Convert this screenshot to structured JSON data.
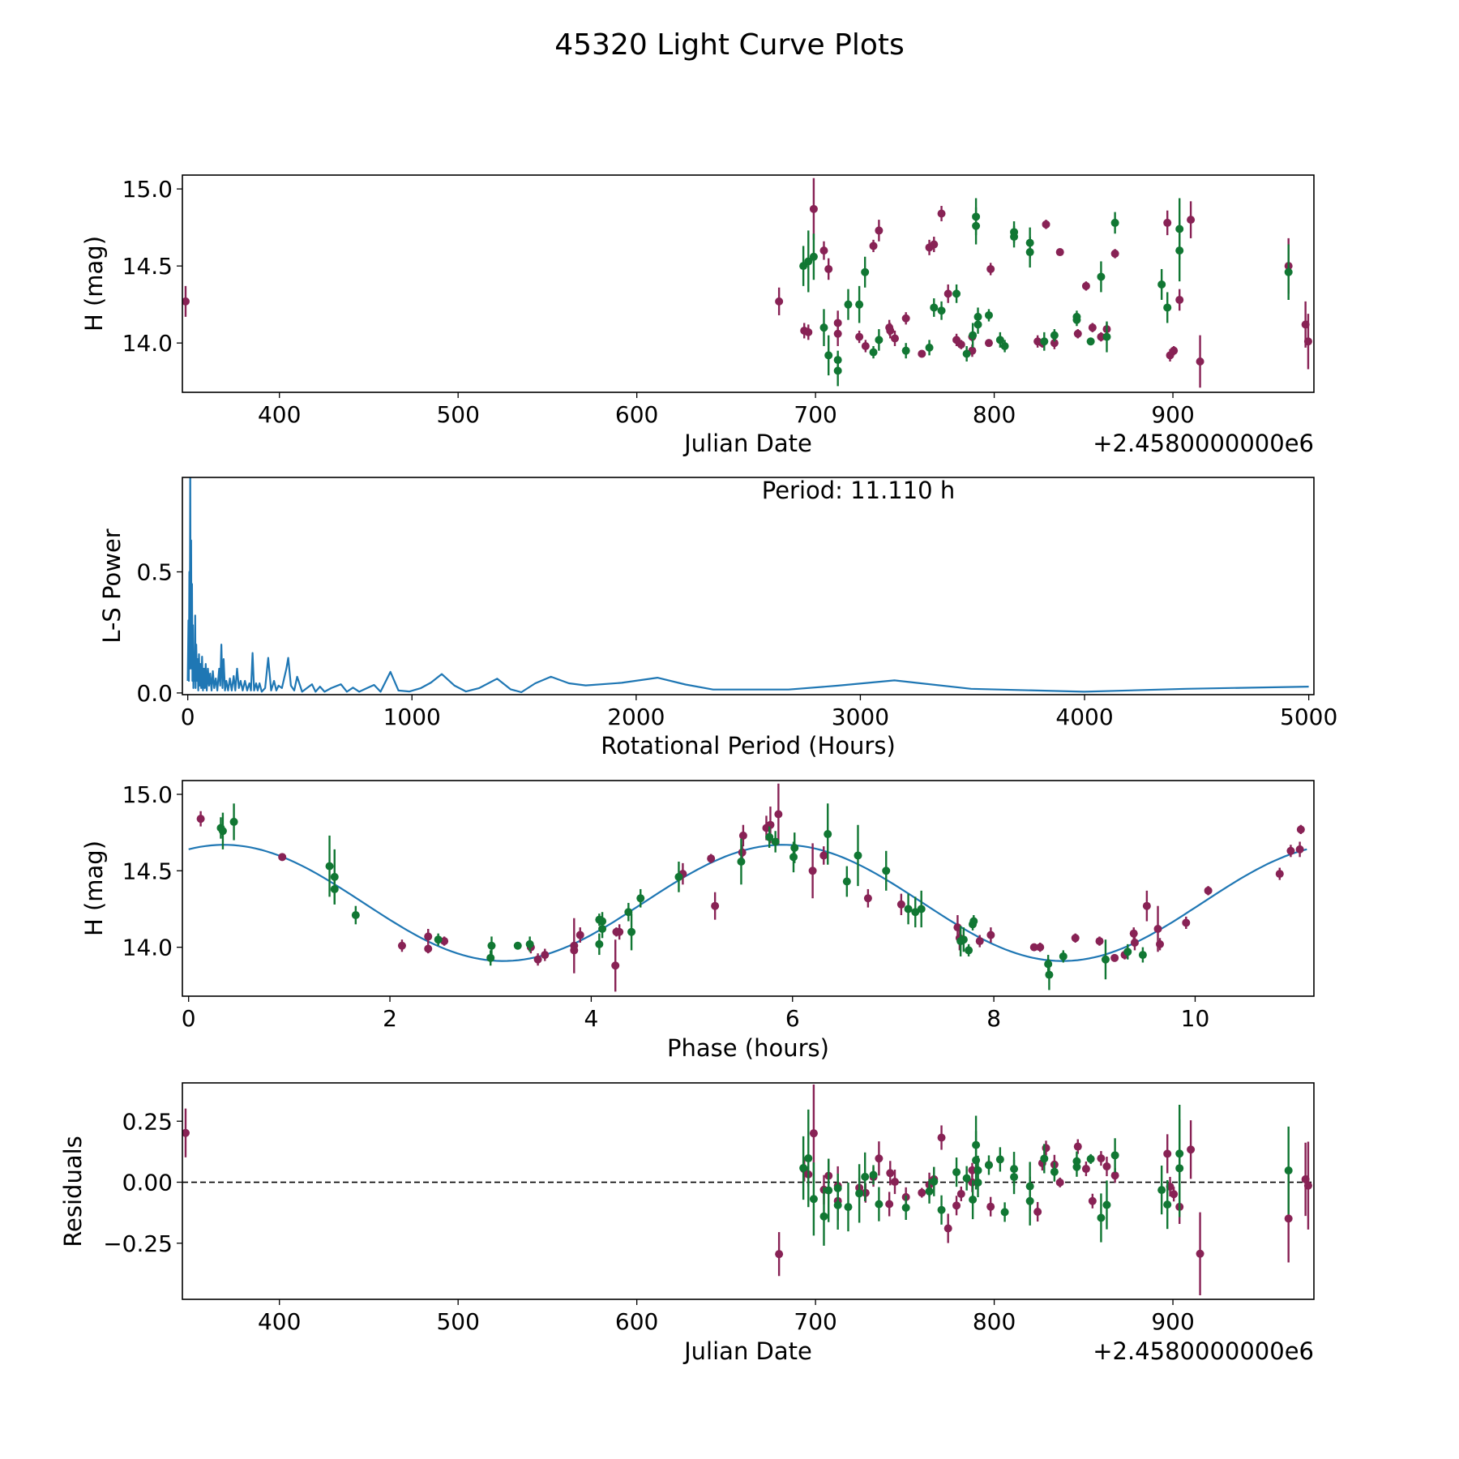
{
  "title": "45320 Light Curve Plots",
  "colors": {
    "m": "#882255",
    "g": "#117733",
    "line": "#1f77b4",
    "axis": "#000000"
  },
  "chart_data": {
    "type": "multi-panel",
    "observations_columns": [
      "julian_date_offset",
      "H_mag",
      "error",
      "series",
      "phase_hours"
    ],
    "observations": [
      [
        347.5,
        14.27,
        0.1,
        "m",
        9.52
      ],
      [
        679.6,
        14.27,
        0.09,
        "m",
        5.23
      ],
      [
        693.7,
        14.08,
        0.05,
        "m",
        7.97
      ],
      [
        696.0,
        14.07,
        0.05,
        "m",
        2.38
      ],
      [
        699.0,
        14.87,
        0.2,
        "m",
        5.86
      ],
      [
        704.7,
        14.6,
        0.06,
        "m",
        6.31
      ],
      [
        707.3,
        14.48,
        0.07,
        "m",
        4.91
      ],
      [
        712.5,
        14.13,
        0.08,
        "m",
        7.64
      ],
      [
        712.5,
        14.06,
        0.08,
        "m",
        7.66
      ],
      [
        724.5,
        14.04,
        0.04,
        "m",
        7.86
      ],
      [
        728.0,
        13.98,
        0.04,
        "m",
        3.83
      ],
      [
        732.4,
        14.63,
        0.04,
        "m",
        10.95
      ],
      [
        735.5,
        14.73,
        0.07,
        "m",
        5.51
      ],
      [
        741.3,
        14.1,
        0.05,
        "m",
        4.28
      ],
      [
        741.8,
        14.08,
        0.05,
        "m",
        3.89
      ],
      [
        744.4,
        14.03,
        0.05,
        "m",
        9.4
      ],
      [
        750.6,
        14.16,
        0.04,
        "m",
        9.91
      ],
      [
        759.5,
        13.93,
        0.02,
        "m",
        9.2
      ],
      [
        763.7,
        14.62,
        0.05,
        "m",
        5.5
      ],
      [
        766.3,
        14.64,
        0.05,
        "m",
        11.04
      ],
      [
        770.5,
        14.84,
        0.05,
        "m",
        0.12
      ],
      [
        774.2,
        14.32,
        0.06,
        "m",
        6.75
      ],
      [
        778.9,
        14.02,
        0.04,
        "m",
        9.65
      ],
      [
        781.5,
        13.99,
        0.03,
        "m",
        2.38
      ],
      [
        787.7,
        14.04,
        0.03,
        "m",
        2.54
      ],
      [
        787.7,
        13.95,
        0.04,
        "m",
        3.54
      ],
      [
        797.0,
        14.0,
        0.02,
        "m",
        8.4
      ],
      [
        798.0,
        14.48,
        0.04,
        "m",
        10.84
      ],
      [
        824.3,
        14.01,
        0.04,
        "m",
        2.12
      ],
      [
        826.9,
        14.0,
        0.03,
        "m",
        8.46
      ],
      [
        829.0,
        14.77,
        0.03,
        "m",
        11.05
      ],
      [
        833.7,
        14.0,
        0.04,
        "m",
        3.4
      ],
      [
        836.8,
        14.59,
        0.02,
        "m",
        0.93
      ],
      [
        846.8,
        14.06,
        0.03,
        "m",
        8.81
      ],
      [
        851.4,
        14.37,
        0.03,
        "m",
        10.13
      ],
      [
        855.0,
        14.1,
        0.03,
        "m",
        4.25
      ],
      [
        859.8,
        14.04,
        0.03,
        "m",
        9.05
      ],
      [
        863.0,
        14.09,
        0.04,
        "m",
        9.39
      ],
      [
        867.6,
        14.58,
        0.03,
        "m",
        5.19
      ],
      [
        896.9,
        14.78,
        0.08,
        "m",
        5.74
      ],
      [
        898.4,
        13.92,
        0.04,
        "m",
        3.47
      ],
      [
        900.5,
        13.95,
        0.03,
        "m",
        9.3
      ],
      [
        903.7,
        14.28,
        0.07,
        "m",
        7.08
      ],
      [
        910.0,
        14.8,
        0.12,
        "m",
        5.78
      ],
      [
        915.2,
        13.88,
        0.17,
        "m",
        4.24
      ],
      [
        964.7,
        14.5,
        0.18,
        "m",
        6.2
      ],
      [
        974.2,
        14.12,
        0.15,
        "m",
        9.63
      ],
      [
        975.7,
        14.01,
        0.18,
        "m",
        3.83
      ],
      [
        693.2,
        14.5,
        0.13,
        "g",
        6.93
      ],
      [
        696.0,
        14.53,
        0.2,
        "g",
        1.4
      ],
      [
        699.0,
        14.56,
        0.15,
        "g",
        5.49
      ],
      [
        704.7,
        14.1,
        0.12,
        "g",
        4.4
      ],
      [
        707.3,
        13.92,
        0.13,
        "g",
        9.11
      ],
      [
        712.5,
        13.89,
        0.06,
        "g",
        8.54
      ],
      [
        712.5,
        13.82,
        0.1,
        "g",
        8.55
      ],
      [
        718.3,
        14.25,
        0.1,
        "g",
        7.15
      ],
      [
        724.5,
        14.25,
        0.12,
        "g",
        7.28
      ],
      [
        727.7,
        14.46,
        0.1,
        "g",
        4.87
      ],
      [
        732.4,
        13.94,
        0.04,
        "g",
        8.69
      ],
      [
        735.5,
        14.02,
        0.07,
        "g",
        4.08
      ],
      [
        750.6,
        13.95,
        0.05,
        "g",
        9.48
      ],
      [
        763.7,
        13.97,
        0.05,
        "g",
        9.33
      ],
      [
        766.3,
        14.23,
        0.06,
        "g",
        4.37
      ],
      [
        770.5,
        14.21,
        0.06,
        "g",
        1.66
      ],
      [
        778.9,
        14.32,
        0.06,
        "g",
        4.49
      ],
      [
        784.6,
        13.93,
        0.05,
        "g",
        3.0
      ],
      [
        788.0,
        14.05,
        0.08,
        "g",
        7.7
      ],
      [
        789.8,
        14.76,
        0.12,
        "g",
        0.34
      ],
      [
        789.8,
        14.82,
        0.12,
        "g",
        0.45
      ],
      [
        790.9,
        14.17,
        0.06,
        "g",
        4.11
      ],
      [
        790.9,
        14.12,
        0.06,
        "g",
        4.11
      ],
      [
        797.0,
        14.18,
        0.04,
        "g",
        4.08
      ],
      [
        803.3,
        14.02,
        0.05,
        "g",
        3.39
      ],
      [
        805.9,
        13.98,
        0.04,
        "g",
        7.75
      ],
      [
        811.1,
        14.72,
        0.07,
        "g",
        5.77
      ],
      [
        811.1,
        14.69,
        0.07,
        "g",
        5.83
      ],
      [
        820.0,
        14.65,
        0.1,
        "g",
        6.02
      ],
      [
        820.0,
        14.59,
        0.1,
        "g",
        6.01
      ],
      [
        828.0,
        14.01,
        0.06,
        "g",
        3.01
      ],
      [
        833.7,
        14.05,
        0.04,
        "g",
        2.48
      ],
      [
        846.2,
        14.15,
        0.04,
        "g",
        7.79
      ],
      [
        846.2,
        14.17,
        0.04,
        "g",
        7.8
      ],
      [
        854.0,
        14.01,
        0.02,
        "g",
        3.27
      ],
      [
        859.8,
        14.43,
        0.1,
        "g",
        6.54
      ],
      [
        863.0,
        14.04,
        0.1,
        "g",
        7.67
      ],
      [
        867.6,
        14.78,
        0.07,
        "g",
        0.32
      ],
      [
        893.7,
        14.38,
        0.1,
        "g",
        1.45
      ],
      [
        896.9,
        14.23,
        0.1,
        "g",
        7.22
      ],
      [
        903.7,
        14.74,
        0.2,
        "g",
        6.35
      ],
      [
        903.7,
        14.6,
        0.2,
        "g",
        6.65
      ],
      [
        964.7,
        14.46,
        0.18,
        "g",
        1.45
      ]
    ],
    "model": {
      "type": "sinusoid",
      "mean": 14.29,
      "amplitude": 0.38,
      "period_hours": 5.555,
      "peak_phase_hours": 0.35,
      "phase_range": [
        0,
        11.11
      ]
    },
    "periodogram": [
      [
        0,
        0.05
      ],
      [
        3,
        0.3
      ],
      [
        5,
        0.05
      ],
      [
        7,
        0.5
      ],
      [
        9,
        0.1
      ],
      [
        11.11,
        0.95
      ],
      [
        13,
        0.2
      ],
      [
        15,
        0.63
      ],
      [
        17,
        0.1
      ],
      [
        19,
        0.45
      ],
      [
        21,
        0.05
      ],
      [
        23,
        0.28
      ],
      [
        25,
        0.02
      ],
      [
        28,
        0.15
      ],
      [
        31,
        0.05
      ],
      [
        33,
        0.32
      ],
      [
        35,
        0.02
      ],
      [
        38,
        0.2
      ],
      [
        41,
        0.05
      ],
      [
        44,
        0.14
      ],
      [
        47,
        0.01
      ],
      [
        50,
        0.16
      ],
      [
        53,
        0.03
      ],
      [
        56,
        0.12
      ],
      [
        60,
        0.02
      ],
      [
        64,
        0.15
      ],
      [
        68,
        0.01
      ],
      [
        72,
        0.1
      ],
      [
        76,
        0.02
      ],
      [
        80,
        0.12
      ],
      [
        85,
        0.01
      ],
      [
        90,
        0.1
      ],
      [
        95,
        0.03
      ],
      [
        100,
        0.08
      ],
      [
        106,
        0.01
      ],
      [
        112,
        0.09
      ],
      [
        118,
        0.02
      ],
      [
        125,
        0.06
      ],
      [
        132,
        0.01
      ],
      [
        140,
        0.1
      ],
      [
        145,
        0.03
      ],
      [
        150,
        0.2
      ],
      [
        155,
        0.02
      ],
      [
        160,
        0.14
      ],
      [
        166,
        0.01
      ],
      [
        172,
        0.05
      ],
      [
        180,
        0.01
      ],
      [
        188,
        0.06
      ],
      [
        196,
        0.01
      ],
      [
        205,
        0.07
      ],
      [
        212,
        0.01
      ],
      [
        220,
        0.1
      ],
      [
        228,
        0.02
      ],
      [
        236,
        0.05
      ],
      [
        245,
        0.01
      ],
      [
        255,
        0.05
      ],
      [
        265,
        0.01
      ],
      [
        275,
        0.04
      ],
      [
        282,
        0.01
      ],
      [
        289,
        0.165
      ],
      [
        296,
        0.01
      ],
      [
        305,
        0.04
      ],
      [
        312,
        0.01
      ],
      [
        320,
        0.04
      ],
      [
        330,
        0.005
      ],
      [
        345,
        0.02
      ],
      [
        359,
        0.145
      ],
      [
        372,
        0.01
      ],
      [
        385,
        0.05
      ],
      [
        395,
        0.01
      ],
      [
        405,
        0.03
      ],
      [
        420,
        0.02
      ],
      [
        440,
        0.1
      ],
      [
        448,
        0.145
      ],
      [
        460,
        0.03
      ],
      [
        475,
        0.01
      ],
      [
        488,
        0.067
      ],
      [
        510,
        0.005
      ],
      [
        554,
        0.036
      ],
      [
        570,
        0.005
      ],
      [
        590,
        0.026
      ],
      [
        610,
        0.005
      ],
      [
        640,
        0.02
      ],
      [
        683,
        0.036
      ],
      [
        710,
        0.005
      ],
      [
        737,
        0.022
      ],
      [
        765,
        0.005
      ],
      [
        800,
        0.02
      ],
      [
        831,
        0.033
      ],
      [
        860,
        0.005
      ],
      [
        904,
        0.087
      ],
      [
        940,
        0.01
      ],
      [
        989,
        0.006
      ],
      [
        1040,
        0.02
      ],
      [
        1085,
        0.043
      ],
      [
        1133,
        0.078
      ],
      [
        1190,
        0.03
      ],
      [
        1241,
        0.006
      ],
      [
        1300,
        0.02
      ],
      [
        1380,
        0.059
      ],
      [
        1440,
        0.015
      ],
      [
        1488,
        0.003
      ],
      [
        1550,
        0.04
      ],
      [
        1620,
        0.067
      ],
      [
        1700,
        0.04
      ],
      [
        1775,
        0.031
      ],
      [
        1935,
        0.042
      ],
      [
        2095,
        0.063
      ],
      [
        2220,
        0.035
      ],
      [
        2343,
        0.014
      ],
      [
        2680,
        0.014
      ],
      [
        2900,
        0.03
      ],
      [
        3152,
        0.052
      ],
      [
        3494,
        0.017
      ],
      [
        3998,
        0.005
      ],
      [
        4453,
        0.017
      ],
      [
        5000,
        0.026
      ]
    ],
    "panels": [
      {
        "type": "scatter",
        "content": "light_curve",
        "xlabel": "Julian Date",
        "ylabel": "H (mag)",
        "offset_label": "+2.4580000000e6",
        "xlim": [
          345.7,
          978.9
        ],
        "ylim": [
          13.68,
          15.09
        ],
        "xticks": [
          {
            "v": 400,
            "label": "400"
          },
          {
            "v": 500,
            "label": "500"
          },
          {
            "v": 600,
            "label": "600"
          },
          {
            "v": 700,
            "label": "700"
          },
          {
            "v": 800,
            "label": "800"
          },
          {
            "v": 900,
            "label": "900"
          }
        ],
        "yticks": [
          {
            "v": 14.0,
            "label": "14.0"
          },
          {
            "v": 14.5,
            "label": "14.5"
          },
          {
            "v": 15.0,
            "label": "15.0"
          }
        ]
      },
      {
        "type": "line",
        "content": "periodogram",
        "xlabel": "Rotational Period (Hours)",
        "ylabel": "L-S Power",
        "annotation": "Period: 11.110 h",
        "xlim": [
          -24,
          5023
        ],
        "ylim": [
          -0.007,
          0.89
        ],
        "xticks": [
          {
            "v": 0,
            "label": "0"
          },
          {
            "v": 1000,
            "label": "1000"
          },
          {
            "v": 2000,
            "label": "2000"
          },
          {
            "v": 3000,
            "label": "3000"
          },
          {
            "v": 4000,
            "label": "4000"
          },
          {
            "v": 5000,
            "label": "5000"
          }
        ],
        "yticks": [
          {
            "v": 0.0,
            "label": "0.0"
          },
          {
            "v": 0.5,
            "label": "0.5"
          }
        ]
      },
      {
        "type": "scatter",
        "content": "phased",
        "xlabel": "Phase (hours)",
        "ylabel": "H (mag)",
        "xlim": [
          -0.062,
          11.18
        ],
        "ylim": [
          13.68,
          15.09
        ],
        "xticks": [
          {
            "v": 0,
            "label": "0"
          },
          {
            "v": 2,
            "label": "2"
          },
          {
            "v": 4,
            "label": "4"
          },
          {
            "v": 6,
            "label": "6"
          },
          {
            "v": 8,
            "label": "8"
          },
          {
            "v": 10,
            "label": "10"
          }
        ],
        "yticks": [
          {
            "v": 14.0,
            "label": "14.0"
          },
          {
            "v": 14.5,
            "label": "14.5"
          },
          {
            "v": 15.0,
            "label": "15.0"
          }
        ]
      },
      {
        "type": "scatter",
        "content": "residuals",
        "xlabel": "Julian Date",
        "ylabel": "Residuals",
        "offset_label": "+2.4580000000e6",
        "xlim": [
          345.7,
          978.9
        ],
        "ylim": [
          -0.48,
          0.407
        ],
        "xticks": [
          {
            "v": 400,
            "label": "400"
          },
          {
            "v": 500,
            "label": "500"
          },
          {
            "v": 600,
            "label": "600"
          },
          {
            "v": 700,
            "label": "700"
          },
          {
            "v": 800,
            "label": "800"
          },
          {
            "v": 900,
            "label": "900"
          }
        ],
        "yticks": [
          {
            "v": -0.25,
            "label": "−0.25"
          },
          {
            "v": 0.0,
            "label": "0.00"
          },
          {
            "v": 0.25,
            "label": "0.25"
          }
        ]
      }
    ]
  }
}
